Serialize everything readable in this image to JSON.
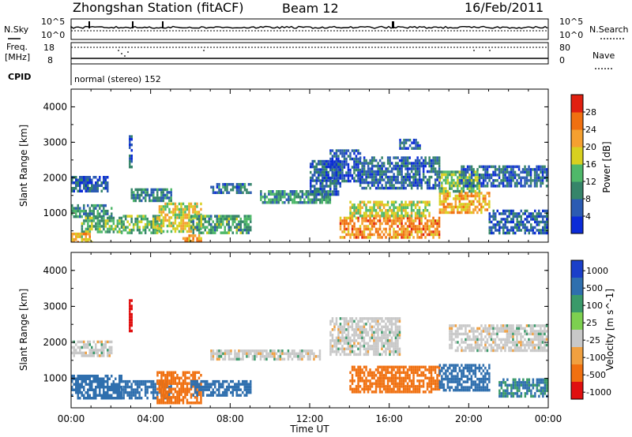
{
  "header": {
    "station": "Zhongshan Station (fitACF)",
    "beam": "Beam 12",
    "date": "16/Feb/2011"
  },
  "top_panels": {
    "nsky_label": "N.Sky",
    "nsky_ticks": [
      "10^5",
      "10^0"
    ],
    "nsearch_label": "N.Search",
    "nsearch_ticks": [
      "10^5",
      "10^0"
    ],
    "freq_label_1": "Freq.",
    "freq_label_2": "[MHz]",
    "freq_ticks": [
      "18",
      "8"
    ],
    "nave_label": "Nave",
    "nave_ticks": [
      "80",
      "0"
    ],
    "cpid_label": "CPID",
    "cpid_value": "normal (stereo) 152"
  },
  "colors": {
    "power": [
      "#0b2bd8",
      "#2b5bb3",
      "#36856a",
      "#4fb86a",
      "#d8d020",
      "#f5a030",
      "#f07010",
      "#e02010"
    ],
    "velocity": [
      "#1b3fc9",
      "#2f6fae",
      "#3a9a6a",
      "#7dd050",
      "#c8c8c8",
      "#f0a040",
      "#f07010",
      "#e01010"
    ]
  },
  "chart_data": [
    {
      "type": "heatmap",
      "title": "",
      "ylabel": "Slant Range [km]",
      "xlabel": "",
      "ylim": [
        180,
        4500
      ],
      "xlim": [
        0,
        24
      ],
      "y_ticks": [
        "1000",
        "2000",
        "3000",
        "4000"
      ],
      "x_ticks": [
        "00:00",
        "04:00",
        "08:00",
        "12:00",
        "16:00",
        "20:00",
        "00:00"
      ],
      "colorbar": {
        "label": "Power [dB]",
        "range": [
          0,
          32
        ],
        "ticks": [
          "4",
          "8",
          "12",
          "16",
          "20",
          "24",
          "28"
        ]
      },
      "regions": [
        {
          "x": [
            0.0,
            1.8
          ],
          "y": [
            1600,
            2050
          ],
          "value": 6
        },
        {
          "x": [
            0.0,
            2.0
          ],
          "y": [
            900,
            1250
          ],
          "value": 10
        },
        {
          "x": [
            0.5,
            2.5
          ],
          "y": [
            450,
            900
          ],
          "value": 13
        },
        {
          "x": [
            0.0,
            1.0
          ],
          "y": [
            200,
            450
          ],
          "value": 20
        },
        {
          "x": [
            2.9,
            3.0
          ],
          "y": [
            2300,
            3200
          ],
          "value": 6
        },
        {
          "x": [
            2.5,
            4.5
          ],
          "y": [
            450,
            950
          ],
          "value": 14
        },
        {
          "x": [
            3.0,
            5.0
          ],
          "y": [
            1350,
            1700
          ],
          "value": 9
        },
        {
          "x": [
            4.3,
            6.5
          ],
          "y": [
            450,
            1300
          ],
          "value": 18
        },
        {
          "x": [
            5.5,
            6.5
          ],
          "y": [
            200,
            400
          ],
          "value": 22
        },
        {
          "x": [
            6.0,
            9.0
          ],
          "y": [
            450,
            950
          ],
          "value": 12
        },
        {
          "x": [
            7.0,
            9.0
          ],
          "y": [
            1550,
            1850
          ],
          "value": 8
        },
        {
          "x": [
            9.5,
            13.0
          ],
          "y": [
            1300,
            1650
          ],
          "value": 11
        },
        {
          "x": [
            12.0,
            13.5
          ],
          "y": [
            1550,
            2500
          ],
          "value": 7
        },
        {
          "x": [
            13.0,
            14.5
          ],
          "y": [
            1900,
            2800
          ],
          "value": 6
        },
        {
          "x": [
            14.5,
            18.5
          ],
          "y": [
            1700,
            2600
          ],
          "value": 7
        },
        {
          "x": [
            13.5,
            18.5
          ],
          "y": [
            350,
            900
          ],
          "value": 24
        },
        {
          "x": [
            14.0,
            18.0
          ],
          "y": [
            900,
            1350
          ],
          "value": 17
        },
        {
          "x": [
            16.5,
            17.5
          ],
          "y": [
            2800,
            3100
          ],
          "value": 6
        },
        {
          "x": [
            18.5,
            21.0
          ],
          "y": [
            1000,
            1600
          ],
          "value": 22
        },
        {
          "x": [
            18.5,
            20.5
          ],
          "y": [
            1600,
            2200
          ],
          "value": 15
        },
        {
          "x": [
            19.5,
            24.0
          ],
          "y": [
            1800,
            2350
          ],
          "value": 7
        },
        {
          "x": [
            21.0,
            24.0
          ],
          "y": [
            400,
            1100
          ],
          "value": 7
        }
      ]
    },
    {
      "type": "heatmap",
      "title": "",
      "ylabel": "Slant Range [km]",
      "xlabel": "Time UT",
      "ylim": [
        180,
        4500
      ],
      "xlim": [
        0,
        24
      ],
      "y_ticks": [
        "1000",
        "2000",
        "3000",
        "4000"
      ],
      "x_ticks": [
        "00:00",
        "04:00",
        "08:00",
        "12:00",
        "16:00",
        "20:00",
        "00:00"
      ],
      "colorbar": {
        "label": "Velocity [m s^-1]",
        "levels": [
          1000,
          500,
          100,
          25,
          -25,
          -100,
          -500,
          -1000
        ],
        "ticks": [
          "1000",
          "500",
          "100",
          "25",
          "-25",
          "-100",
          "-500",
          "-1000"
        ]
      },
      "regions": [
        {
          "x": [
            0.0,
            2.0
          ],
          "y": [
            1650,
            2050
          ],
          "value": 0
        },
        {
          "x": [
            0.0,
            2.5
          ],
          "y": [
            450,
            1100
          ],
          "value": 200
        },
        {
          "x": [
            2.9,
            3.0
          ],
          "y": [
            2300,
            3200
          ],
          "value": -700
        },
        {
          "x": [
            2.5,
            5.0
          ],
          "y": [
            450,
            950
          ],
          "value": 200
        },
        {
          "x": [
            4.3,
            6.5
          ],
          "y": [
            350,
            1200
          ],
          "value": -200
        },
        {
          "x": [
            6.0,
            9.0
          ],
          "y": [
            500,
            950
          ],
          "value": 200
        },
        {
          "x": [
            7.0,
            12.5
          ],
          "y": [
            1500,
            1800
          ],
          "value": 0
        },
        {
          "x": [
            13.0,
            16.5
          ],
          "y": [
            1700,
            2700
          ],
          "value": 0
        },
        {
          "x": [
            14.0,
            18.5
          ],
          "y": [
            600,
            1350
          ],
          "value": -200
        },
        {
          "x": [
            18.5,
            21.0
          ],
          "y": [
            700,
            1400
          ],
          "value": 200
        },
        {
          "x": [
            19.0,
            24.0
          ],
          "y": [
            1800,
            2500
          ],
          "value": 0
        },
        {
          "x": [
            21.5,
            24.0
          ],
          "y": [
            500,
            1000
          ],
          "value": 100
        }
      ]
    }
  ]
}
